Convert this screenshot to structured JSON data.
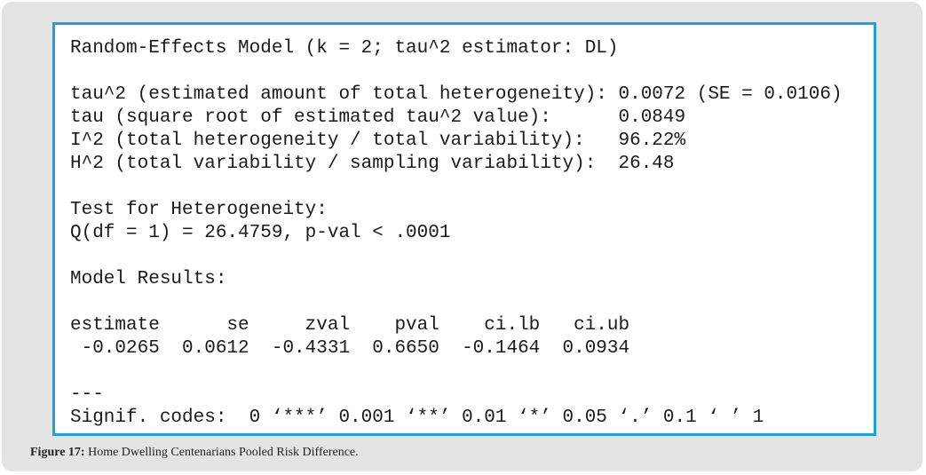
{
  "output": {
    "blocks": [
      [
        "Random-Effects Model (k = 2; tau^2 estimator: DL)"
      ],
      [
        "tau^2 (estimated amount of total heterogeneity): 0.0072 (SE = 0.0106)",
        "tau (square root of estimated tau^2 value):      0.0849",
        "I^2 (total heterogeneity / total variability):   96.22%",
        "H^2 (total variability / sampling variability):  26.48"
      ],
      [
        "Test for Heterogeneity:",
        "Q(df = 1) = 26.4759, p-val < .0001"
      ],
      [
        "Model Results:"
      ],
      [
        "estimate      se     zval    pval    ci.lb   ci.ub",
        " -0.0265  0.0612  -0.4331  0.6650  -0.1464  0.0934"
      ],
      [
        "---",
        "Signif. codes:  0 ‘***’ 0.001 ‘**’ 0.01 ‘*’ 0.05 ‘.’ 0.1 ‘ ’ 1"
      ]
    ]
  },
  "caption": {
    "label": "Figure 17:",
    "text": " Home Dwelling Centenarians Pooled Risk Difference."
  }
}
